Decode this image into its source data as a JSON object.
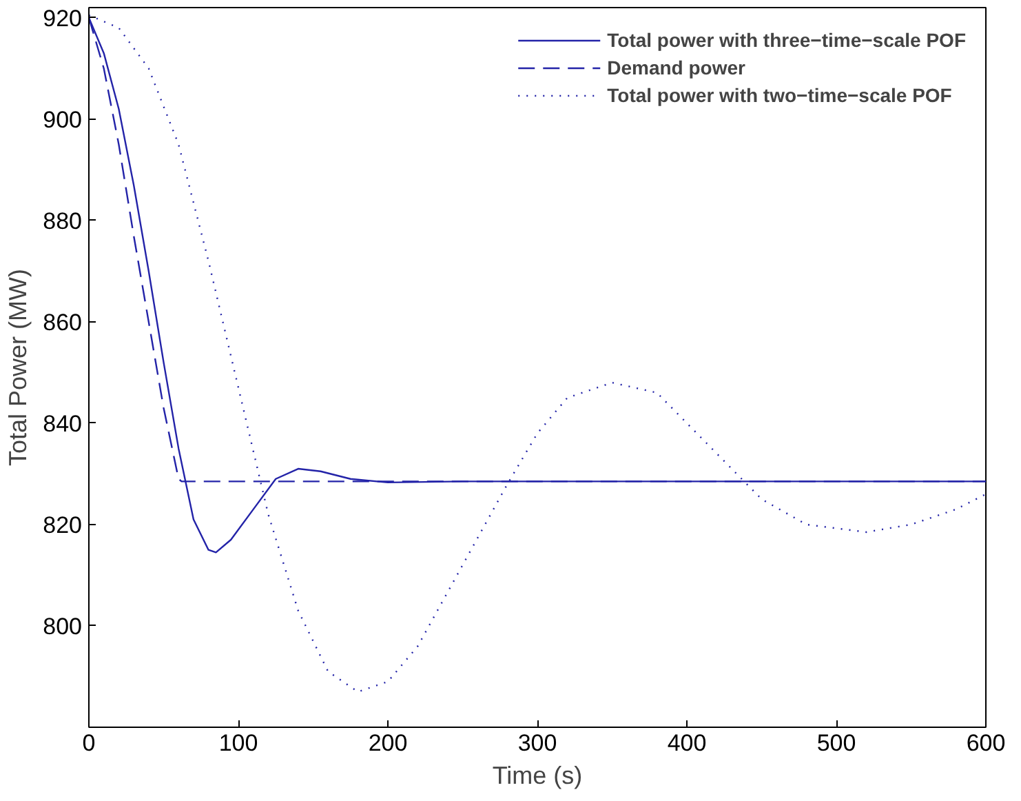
{
  "chart_data": {
    "type": "line",
    "xlabel": "Time (s)",
    "ylabel": "Total Power (MW)",
    "xlim": [
      0,
      600
    ],
    "ylim": [
      780,
      922
    ],
    "xticks": [
      0,
      100,
      200,
      300,
      400,
      500,
      600
    ],
    "yticks": [
      800,
      820,
      840,
      860,
      880,
      900,
      920
    ],
    "grid": false,
    "legend": "top right",
    "series": [
      {
        "name": "Total power with three−time−scale POF",
        "color": "#2323a8",
        "line_style": "solid",
        "x": [
          0,
          10,
          20,
          30,
          40,
          50,
          60,
          70,
          80,
          85,
          95,
          110,
          125,
          140,
          155,
          175,
          200,
          250,
          600
        ],
        "values": [
          920,
          913,
          902,
          887,
          870,
          852,
          835,
          821,
          815,
          814.5,
          817,
          823,
          829,
          831,
          830.5,
          829,
          828.3,
          828.5,
          828.5
        ]
      },
      {
        "name": "Demand power",
        "color": "#2323a8",
        "line_style": "dashed",
        "x": [
          0,
          10,
          20,
          30,
          40,
          50,
          60,
          62,
          600
        ],
        "values": [
          920,
          910,
          895,
          877,
          860,
          843,
          829,
          828.5,
          828.5
        ]
      },
      {
        "name": "Total power with two−time−scale POF",
        "color": "#2323a8",
        "line_style": "dotted",
        "x": [
          0,
          20,
          40,
          60,
          80,
          100,
          120,
          140,
          160,
          180,
          200,
          220,
          250,
          280,
          300,
          320,
          350,
          380,
          400,
          430,
          450,
          480,
          520,
          550,
          580,
          600
        ],
        "values": [
          920.5,
          918,
          910,
          895,
          872,
          847,
          822,
          803,
          791,
          787,
          789,
          796,
          812,
          828,
          838,
          845,
          848,
          846,
          840,
          831,
          825,
          820,
          818.5,
          820,
          823,
          826
        ]
      }
    ]
  }
}
